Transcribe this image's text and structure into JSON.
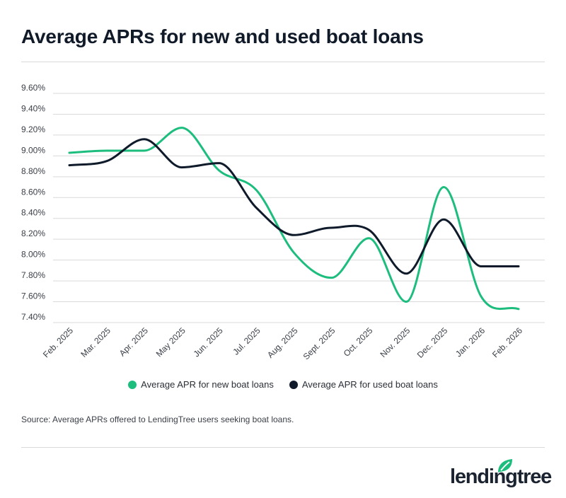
{
  "title": "Average APRs for new and used boat loans",
  "source": "Source: Average APRs offered to LendingTree users seeking boat loans.",
  "logo_text": "lendingtree",
  "colors": {
    "new": "#1dbd7e",
    "used": "#0f1b2b",
    "grid": "#d9d9d9"
  },
  "chart_data": {
    "type": "line",
    "title": "Average APRs for new and used boat loans",
    "xlabel": "",
    "ylabel": "",
    "ylim": [
      7.4,
      9.6
    ],
    "yticks": [
      "9.60%",
      "9.40%",
      "9.20%",
      "9.00%",
      "8.80%",
      "8.60%",
      "8.40%",
      "8.20%",
      "8.00%",
      "7.80%",
      "7.60%",
      "7.40%"
    ],
    "ytick_values": [
      9.6,
      9.4,
      9.2,
      9.0,
      8.8,
      8.6,
      8.4,
      8.2,
      8.0,
      7.8,
      7.6,
      7.4
    ],
    "grid": true,
    "legend": "bottom",
    "categories": [
      "Feb. 2025",
      "Mar. 2025",
      "Apr. 2025",
      "May 2025",
      "Jun. 2025",
      "Jul. 2025",
      "Aug. 2025",
      "Sept. 2025",
      "Oct. 2025",
      "Nov. 2025",
      "Dec. 2025",
      "Jan. 2026",
      "Feb. 2026"
    ],
    "series": [
      {
        "name": "Average APR for new boat loans",
        "color": "#1dbd7e",
        "values": [
          9.03,
          9.05,
          9.05,
          9.27,
          8.86,
          8.67,
          8.07,
          7.83,
          8.21,
          7.6,
          8.7,
          7.65,
          7.53
        ]
      },
      {
        "name": "Average APR for used boat loans",
        "color": "#0f1b2b",
        "values": [
          8.91,
          8.95,
          9.16,
          8.89,
          8.93,
          8.5,
          8.24,
          8.31,
          8.29,
          7.87,
          8.39,
          7.94,
          7.94
        ]
      }
    ]
  }
}
